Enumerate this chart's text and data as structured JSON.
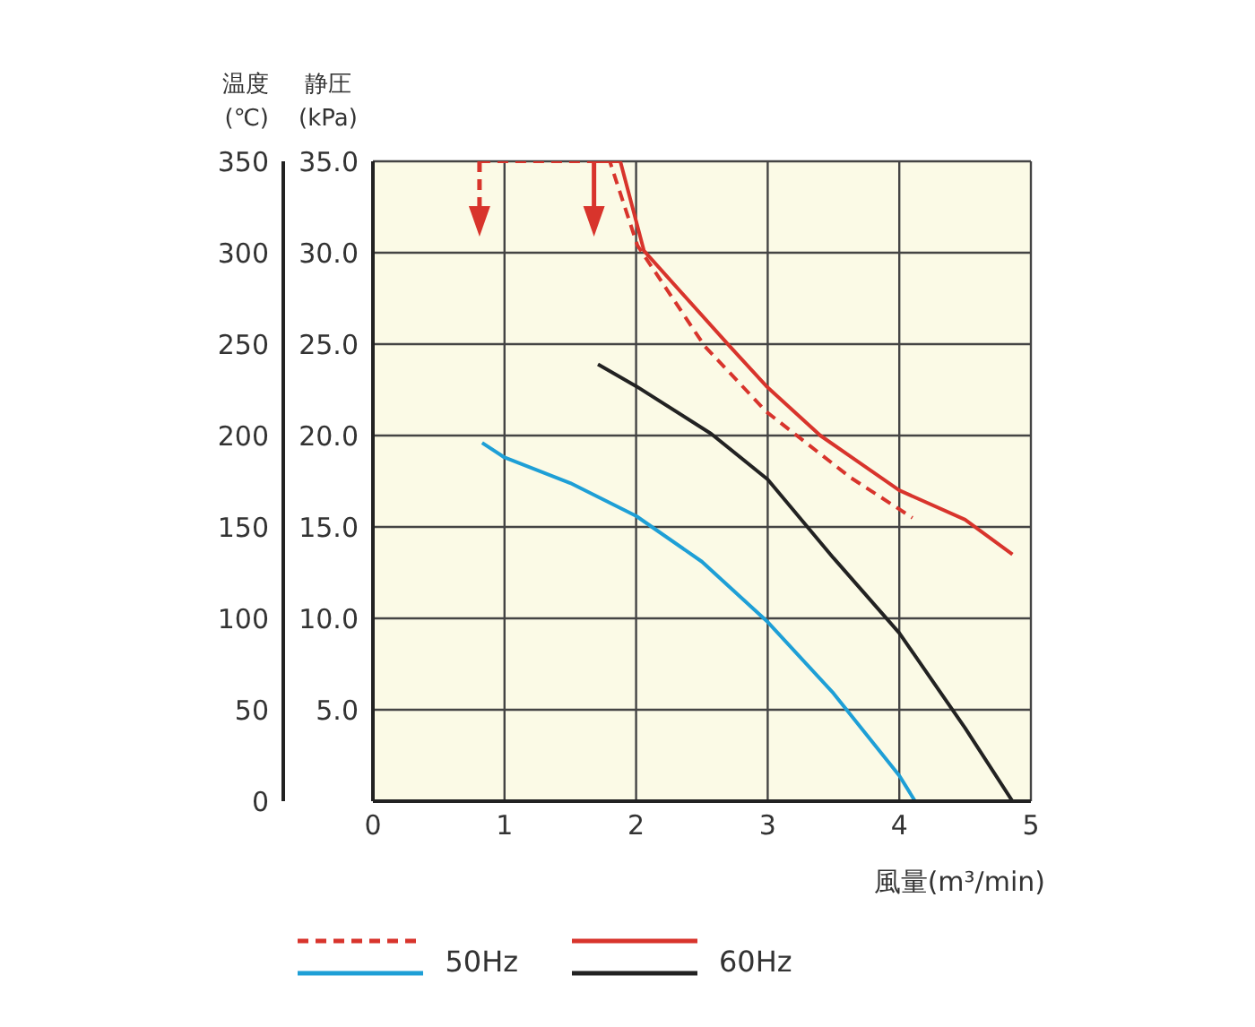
{
  "chart_data": {
    "type": "line",
    "xlabel": "風量(m³/min)",
    "ylabel": "静圧\n(kPa)",
    "y2label": "温度\n(℃)",
    "xlim": [
      0,
      5
    ],
    "xticks": [
      0,
      1,
      2,
      3,
      4,
      5
    ],
    "ylim": [
      0,
      35
    ],
    "yticks": [
      {
        "value": 0,
        "label": null
      },
      {
        "value": 5,
        "label": "5.0"
      },
      {
        "value": 10,
        "label": "10.0"
      },
      {
        "value": 15,
        "label": "15.0"
      },
      {
        "value": 20,
        "label": "20.0"
      },
      {
        "value": 25,
        "label": "25.0"
      },
      {
        "value": 30,
        "label": "30.0"
      },
      {
        "value": 35,
        "label": "35.0"
      }
    ],
    "y2lim": [
      0,
      350
    ],
    "y2ticks": [
      0,
      50,
      100,
      150,
      200,
      250,
      300,
      350
    ],
    "grid": true,
    "legend": "bottom",
    "marker": "none",
    "series": [
      {
        "color": "#d8342c",
        "axis": "y2",
        "line_style": "dashed",
        "x": [
          0.81,
          1.8,
          2.01,
          2.52,
          2.99,
          3.63,
          4.1
        ],
        "values": [
          350,
          350,
          304,
          249,
          213,
          177,
          155
        ]
      },
      {
        "name": "50Hz",
        "color": "#1e9fd6",
        "x": [
          0.83,
          1,
          1.5,
          2,
          2.5,
          3,
          3.5,
          4,
          4.12
        ],
        "values": [
          19.6,
          18.8,
          17.4,
          15.6,
          13.1,
          9.8,
          5.9,
          1.4,
          0
        ]
      },
      {
        "color": "#d8342c",
        "axis": "y2",
        "line_style": "solid",
        "x": [
          1.68,
          1.88,
          2.06,
          2.71,
          2.99,
          3.4,
          4,
          4.5,
          4.86
        ],
        "values": [
          350,
          350,
          301,
          249,
          227,
          200,
          170,
          154,
          135
        ]
      },
      {
        "name": "60Hz",
        "color": "#222222",
        "x": [
          1.71,
          2,
          2.57,
          3,
          3.5,
          4,
          4.5,
          4.86
        ],
        "values": [
          23.9,
          22.7,
          20.1,
          17.6,
          13.3,
          9.2,
          4.0,
          0
        ]
      }
    ]
  }
}
